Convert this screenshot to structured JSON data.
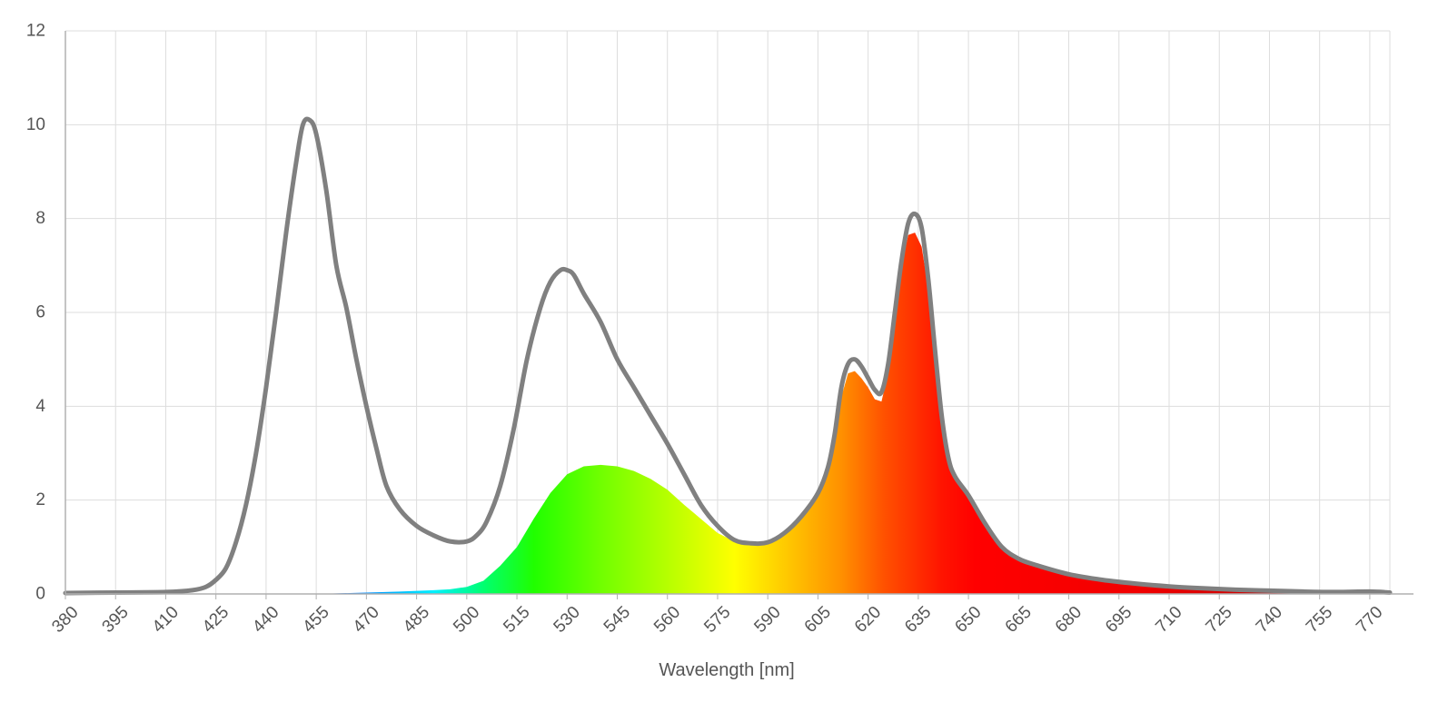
{
  "chart_data": {
    "type": "area",
    "title": "",
    "xlabel": "Wavelength [nm]",
    "ylabel": "",
    "xlim": [
      380,
      776
    ],
    "ylim": [
      0,
      12
    ],
    "x_ticks": [
      "380",
      "395",
      "410",
      "425",
      "440",
      "455",
      "470",
      "485",
      "500",
      "515",
      "530",
      "545",
      "560",
      "575",
      "590",
      "605",
      "620",
      "635",
      "650",
      "665",
      "680",
      "695",
      "710",
      "725",
      "740",
      "755",
      "770"
    ],
    "y_ticks": [
      "0",
      "2",
      "4",
      "6",
      "8",
      "10",
      "12"
    ],
    "grid": true,
    "legend": "none",
    "series": [
      {
        "kind": "line",
        "color": "#808080",
        "points": [
          [
            380,
            0.02
          ],
          [
            395,
            0.03
          ],
          [
            410,
            0.04
          ],
          [
            418,
            0.08
          ],
          [
            422,
            0.15
          ],
          [
            425,
            0.3
          ],
          [
            428,
            0.55
          ],
          [
            431,
            1.1
          ],
          [
            434,
            1.9
          ],
          [
            437,
            3.0
          ],
          [
            440,
            4.4
          ],
          [
            443,
            6.0
          ],
          [
            446,
            7.7
          ],
          [
            449,
            9.2
          ],
          [
            451,
            10.0
          ],
          [
            453,
            10.1
          ],
          [
            455,
            9.8
          ],
          [
            458,
            8.6
          ],
          [
            461,
            7.0
          ],
          [
            464,
            6.1
          ],
          [
            467,
            5.0
          ],
          [
            470,
            4.0
          ],
          [
            473,
            3.1
          ],
          [
            476,
            2.3
          ],
          [
            480,
            1.8
          ],
          [
            485,
            1.45
          ],
          [
            490,
            1.25
          ],
          [
            495,
            1.12
          ],
          [
            500,
            1.12
          ],
          [
            503,
            1.25
          ],
          [
            506,
            1.55
          ],
          [
            510,
            2.3
          ],
          [
            514,
            3.5
          ],
          [
            518,
            5.0
          ],
          [
            522,
            6.1
          ],
          [
            525,
            6.65
          ],
          [
            528,
            6.9
          ],
          [
            530,
            6.9
          ],
          [
            532,
            6.8
          ],
          [
            535,
            6.4
          ],
          [
            540,
            5.8
          ],
          [
            545,
            5.0
          ],
          [
            550,
            4.4
          ],
          [
            555,
            3.8
          ],
          [
            560,
            3.2
          ],
          [
            565,
            2.55
          ],
          [
            570,
            1.9
          ],
          [
            575,
            1.45
          ],
          [
            580,
            1.15
          ],
          [
            585,
            1.08
          ],
          [
            590,
            1.1
          ],
          [
            595,
            1.3
          ],
          [
            600,
            1.65
          ],
          [
            605,
            2.15
          ],
          [
            608,
            2.7
          ],
          [
            610,
            3.4
          ],
          [
            612,
            4.4
          ],
          [
            614,
            4.9
          ],
          [
            616,
            5.0
          ],
          [
            618,
            4.85
          ],
          [
            620,
            4.6
          ],
          [
            622,
            4.35
          ],
          [
            624,
            4.3
          ],
          [
            626,
            4.9
          ],
          [
            628,
            6.0
          ],
          [
            630,
            7.1
          ],
          [
            632,
            7.9
          ],
          [
            634,
            8.1
          ],
          [
            636,
            7.8
          ],
          [
            638,
            6.7
          ],
          [
            640,
            5.2
          ],
          [
            642,
            3.8
          ],
          [
            644,
            2.9
          ],
          [
            646,
            2.5
          ],
          [
            650,
            2.1
          ],
          [
            655,
            1.5
          ],
          [
            660,
            1.0
          ],
          [
            665,
            0.75
          ],
          [
            670,
            0.62
          ],
          [
            680,
            0.42
          ],
          [
            690,
            0.3
          ],
          [
            700,
            0.22
          ],
          [
            710,
            0.16
          ],
          [
            720,
            0.12
          ],
          [
            730,
            0.09
          ],
          [
            740,
            0.07
          ],
          [
            750,
            0.05
          ],
          [
            760,
            0.04
          ],
          [
            770,
            0.05
          ],
          [
            776,
            0.03
          ]
        ]
      },
      {
        "kind": "area",
        "coloring": "visible-spectrum",
        "points": [
          [
            380,
            0.0
          ],
          [
            400,
            0.0
          ],
          [
            420,
            0.0
          ],
          [
            440,
            0.0
          ],
          [
            460,
            0.01
          ],
          [
            470,
            0.03
          ],
          [
            480,
            0.05
          ],
          [
            490,
            0.08
          ],
          [
            495,
            0.1
          ],
          [
            500,
            0.15
          ],
          [
            505,
            0.28
          ],
          [
            510,
            0.6
          ],
          [
            515,
            1.0
          ],
          [
            520,
            1.6
          ],
          [
            525,
            2.15
          ],
          [
            530,
            2.55
          ],
          [
            535,
            2.72
          ],
          [
            540,
            2.75
          ],
          [
            545,
            2.72
          ],
          [
            550,
            2.62
          ],
          [
            555,
            2.45
          ],
          [
            560,
            2.22
          ],
          [
            565,
            1.9
          ],
          [
            570,
            1.6
          ],
          [
            575,
            1.3
          ],
          [
            580,
            1.12
          ],
          [
            585,
            1.08
          ],
          [
            590,
            1.1
          ],
          [
            595,
            1.3
          ],
          [
            600,
            1.65
          ],
          [
            605,
            2.15
          ],
          [
            608,
            2.7
          ],
          [
            610,
            3.4
          ],
          [
            612,
            4.2
          ],
          [
            614,
            4.7
          ],
          [
            616,
            4.75
          ],
          [
            618,
            4.6
          ],
          [
            620,
            4.4
          ],
          [
            622,
            4.15
          ],
          [
            624,
            4.1
          ],
          [
            626,
            4.7
          ],
          [
            628,
            5.9
          ],
          [
            630,
            7.0
          ],
          [
            632,
            7.65
          ],
          [
            634,
            7.7
          ],
          [
            636,
            7.4
          ],
          [
            638,
            6.5
          ],
          [
            640,
            5.0
          ],
          [
            642,
            3.7
          ],
          [
            644,
            2.8
          ],
          [
            646,
            2.45
          ],
          [
            650,
            2.05
          ],
          [
            655,
            1.45
          ],
          [
            660,
            0.98
          ],
          [
            665,
            0.72
          ],
          [
            670,
            0.6
          ],
          [
            680,
            0.4
          ],
          [
            690,
            0.29
          ],
          [
            700,
            0.21
          ],
          [
            710,
            0.15
          ],
          [
            720,
            0.11
          ],
          [
            730,
            0.08
          ],
          [
            740,
            0.06
          ],
          [
            750,
            0.04
          ],
          [
            760,
            0.03
          ],
          [
            770,
            0.04
          ],
          [
            776,
            0.02
          ]
        ]
      }
    ]
  }
}
